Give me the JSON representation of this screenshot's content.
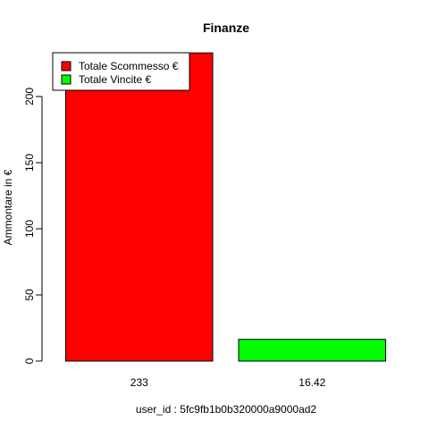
{
  "chart_data": {
    "type": "bar",
    "title": "Finanze",
    "xlabel": "user_id : 5fc9fb1b0b320000a9000ad2",
    "ylabel": "Ammontare in €",
    "ylim": [
      0,
      233
    ],
    "yticks": [
      0,
      50,
      100,
      150,
      200
    ],
    "categories": [
      "233",
      "16.42"
    ],
    "values": [
      233,
      16.42
    ],
    "colors": [
      "#ff0000",
      "#00ff00"
    ],
    "legend": {
      "position": "top-left",
      "entries": [
        {
          "label": "Totale Scommesso €",
          "color": "#ff0000"
        },
        {
          "label": "Totale Vincite €",
          "color": "#00ff00"
        }
      ]
    },
    "grid": false
  }
}
